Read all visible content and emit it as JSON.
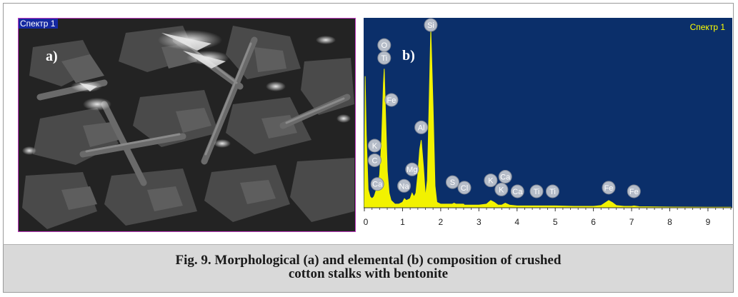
{
  "panel_a": {
    "tag": "Спектр 1",
    "label": "a)"
  },
  "panel_b": {
    "tag": "Спектр 1",
    "label": "b)"
  },
  "caption": {
    "line1": "Fig. 9. Morphological (a) and elemental (b) composition of crushed",
    "line2": "cotton stalks with bentonite"
  },
  "colors": {
    "spectrum_bg": "#0b2f6a",
    "spectrum_fill": "#f2f200",
    "caption_bg": "#d9d9d9"
  },
  "chart_data": {
    "type": "area",
    "title": "",
    "xlabel": "",
    "ylabel": "",
    "xlim": [
      0,
      9.6
    ],
    "x_ticks": [
      "0",
      "1",
      "2",
      "3",
      "4",
      "5",
      "6",
      "7",
      "8",
      "9"
    ],
    "series": [
      {
        "x": [
          0,
          0.02,
          0.05,
          0.1,
          0.15,
          0.2,
          0.25,
          0.27,
          0.3,
          0.35,
          0.4,
          0.45,
          0.5,
          0.52,
          0.55,
          0.6,
          0.65,
          0.7,
          0.8,
          0.9,
          1.0,
          1.05,
          1.1,
          1.2,
          1.25,
          1.3,
          1.35,
          1.4,
          1.45,
          1.49,
          1.55,
          1.6,
          1.65,
          1.7,
          1.74,
          1.8,
          1.85,
          1.9,
          2.0,
          2.1,
          2.2,
          2.3,
          2.35,
          2.4,
          2.6,
          2.62,
          2.7,
          3.0,
          3.2,
          3.31,
          3.4,
          3.5,
          3.6,
          3.69,
          3.8,
          4.0,
          4.5,
          5.0,
          5.5,
          6.0,
          6.2,
          6.4,
          6.5,
          6.6,
          6.8,
          7.0,
          7.06,
          7.2,
          8.0,
          9.0,
          9.6
        ],
        "y": [
          0.02,
          0.72,
          0.4,
          0.1,
          0.06,
          0.05,
          0.06,
          0.07,
          0.09,
          0.12,
          0.18,
          0.35,
          0.68,
          0.76,
          0.55,
          0.2,
          0.08,
          0.04,
          0.02,
          0.02,
          0.03,
          0.05,
          0.04,
          0.05,
          0.08,
          0.06,
          0.08,
          0.18,
          0.32,
          0.37,
          0.22,
          0.06,
          0.15,
          0.6,
          0.98,
          0.55,
          0.12,
          0.03,
          0.02,
          0.02,
          0.02,
          0.02,
          0.025,
          0.02,
          0.02,
          0.015,
          0.015,
          0.015,
          0.02,
          0.04,
          0.03,
          0.015,
          0.015,
          0.025,
          0.015,
          0.01,
          0.01,
          0.01,
          0.008,
          0.008,
          0.012,
          0.04,
          0.028,
          0.012,
          0.008,
          0.008,
          0.01,
          0.006,
          0.004,
          0.003,
          0.003
        ]
      }
    ],
    "peak_labels": [
      {
        "label": "Si",
        "x": 1.74,
        "y": 1.0
      },
      {
        "label": "O",
        "x": 0.52,
        "y": 0.89
      },
      {
        "label": "Ti",
        "x": 0.52,
        "y": 0.82
      },
      {
        "label": "Fe",
        "x": 0.71,
        "y": 0.59
      },
      {
        "label": "Al",
        "x": 1.49,
        "y": 0.44
      },
      {
        "label": "K",
        "x": 0.27,
        "y": 0.34
      },
      {
        "label": "C",
        "x": 0.27,
        "y": 0.26
      },
      {
        "label": "Mg",
        "x": 1.25,
        "y": 0.21
      },
      {
        "label": "Ca",
        "x": 0.34,
        "y": 0.13
      },
      {
        "label": "Na",
        "x": 1.04,
        "y": 0.12
      },
      {
        "label": "S",
        "x": 2.31,
        "y": 0.14
      },
      {
        "label": "Cl",
        "x": 2.62,
        "y": 0.11
      },
      {
        "label": "K",
        "x": 3.31,
        "y": 0.15
      },
      {
        "label": "Ca",
        "x": 3.69,
        "y": 0.17
      },
      {
        "label": "K",
        "x": 3.59,
        "y": 0.1
      },
      {
        "label": "Ca",
        "x": 4.01,
        "y": 0.09
      },
      {
        "label": "Ti",
        "x": 4.51,
        "y": 0.09
      },
      {
        "label": "Ti",
        "x": 4.93,
        "y": 0.09
      },
      {
        "label": "Fe",
        "x": 6.4,
        "y": 0.11
      },
      {
        "label": "Fe",
        "x": 7.06,
        "y": 0.09
      }
    ]
  }
}
